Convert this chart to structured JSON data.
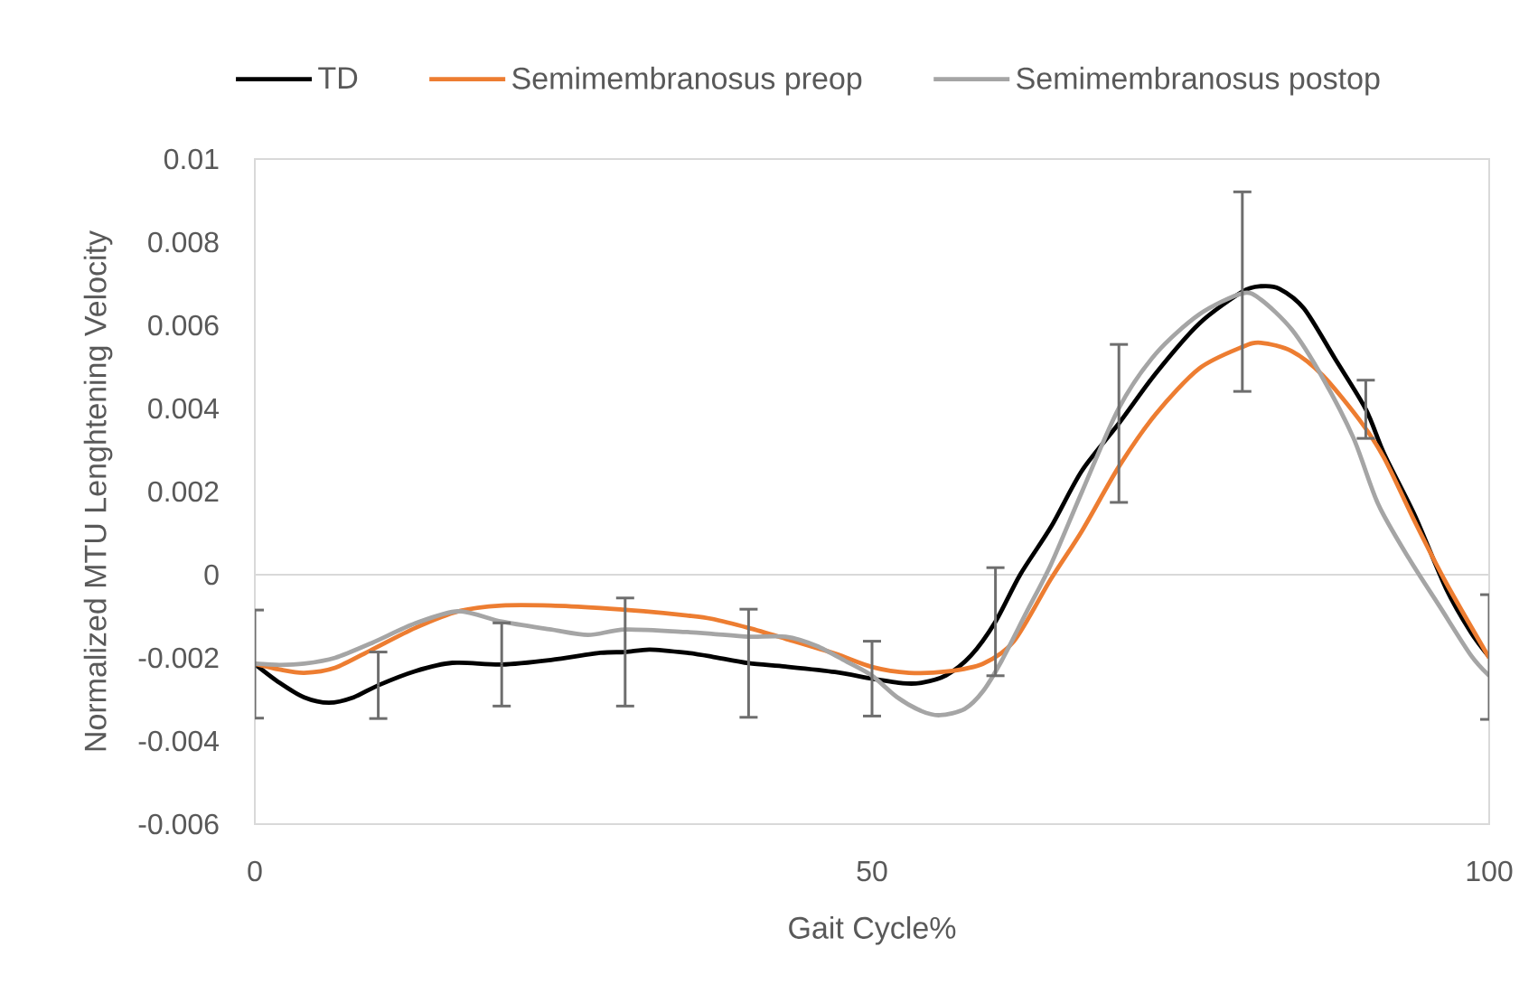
{
  "chart_data": {
    "type": "line",
    "xlabel": "Gait Cycle%",
    "ylabel": "Normalized MTU Lenghtening Velocity",
    "xlim": [
      0,
      100
    ],
    "xticks": [
      0,
      50,
      100
    ],
    "ylim": [
      -0.006,
      0.01
    ],
    "yticks": [
      -0.006,
      -0.004,
      -0.002,
      0,
      0.002,
      0.004,
      0.006,
      0.008,
      0.01
    ],
    "legend": "top",
    "marker": "none",
    "line_style": "solid",
    "ref_lines": [
      {
        "axis": "y",
        "value": 0,
        "color": "#d9d9d9"
      }
    ],
    "series": [
      {
        "name": "TD",
        "color": "#000000",
        "x": [
          0,
          2,
          4,
          6,
          8,
          10,
          13,
          16,
          20,
          24,
          28,
          30,
          32,
          35,
          37,
          40,
          43,
          47,
          50,
          52.5,
          54,
          56,
          58,
          60,
          62,
          64.5,
          67,
          70,
          73,
          76.5,
          80,
          81.5,
          83,
          85,
          87.5,
          90,
          91.5,
          94,
          96.5,
          98.5,
          100
        ],
        "values": [
          -0.00215,
          -0.0026,
          -0.00295,
          -0.00308,
          -0.00295,
          -0.00266,
          -0.00232,
          -0.00212,
          -0.00216,
          -0.00205,
          -0.00188,
          -0.00186,
          -0.0018,
          -0.00188,
          -0.00197,
          -0.00213,
          -0.00221,
          -0.00234,
          -0.0025,
          -0.00261,
          -0.0026,
          -0.00242,
          -0.00195,
          -0.00113,
          0.0,
          0.00115,
          0.0025,
          0.00364,
          0.00485,
          0.00604,
          0.00681,
          0.00694,
          0.00688,
          0.0064,
          0.0052,
          0.00398,
          0.0029,
          0.00141,
          -0.00033,
          -0.00138,
          -0.00198
        ],
        "errors": [
          0.0013,
          null,
          null,
          null,
          null,
          0.0008,
          null,
          null,
          0.001,
          null,
          null,
          0.0013,
          null,
          null,
          null,
          0.0013,
          null,
          null,
          0.0009,
          null,
          null,
          null,
          null,
          0.0013,
          null,
          null,
          null,
          0.0019,
          null,
          null,
          0.0024,
          null,
          null,
          null,
          null,
          0.0007,
          null,
          null,
          null,
          null,
          0.0015
        ]
      },
      {
        "name": "Semimembranosus preop",
        "color": "#ed7d31",
        "x": [
          0,
          2,
          4,
          6.5,
          9.5,
          13,
          16.5,
          20,
          24,
          28,
          31.5,
          35,
          37,
          40,
          43,
          47,
          50,
          53,
          56,
          59,
          61.5,
          64.5,
          67,
          70,
          73,
          76.5,
          80,
          81.5,
          84,
          86.5,
          89.5,
          91.5,
          94,
          96.5,
          100
        ],
        "values": [
          -0.00214,
          -0.00228,
          -0.00236,
          -0.00224,
          -0.0018,
          -0.00128,
          -0.00088,
          -0.00074,
          -0.00074,
          -0.0008,
          -0.00088,
          -0.00098,
          -0.00106,
          -0.00128,
          -0.00154,
          -0.0019,
          -0.00222,
          -0.00236,
          -0.00233,
          -0.00214,
          -0.0016,
          -0.0001,
          0.00105,
          0.0026,
          0.00387,
          0.00496,
          0.00548,
          0.00558,
          0.00538,
          0.0048,
          0.00372,
          0.0028,
          0.00126,
          -0.00019,
          -0.002
        ]
      },
      {
        "name": "Semimembranosus postop",
        "color": "#a5a5a5",
        "x": [
          0,
          2,
          4,
          6.5,
          9.5,
          13,
          16.5,
          20,
          24,
          27,
          30,
          35,
          37,
          40,
          43,
          45.5,
          48,
          50,
          52,
          54,
          55.5,
          57.5,
          59,
          60.5,
          62.5,
          64.5,
          67,
          70,
          73,
          76.5,
          80,
          81.5,
          84,
          86.5,
          89,
          91,
          93.5,
          96,
          98.5,
          100
        ],
        "values": [
          -0.00214,
          -0.00217,
          -0.00214,
          -0.002,
          -0.00164,
          -0.00117,
          -0.00088,
          -0.00113,
          -0.00132,
          -0.00145,
          -0.00132,
          -0.00138,
          -0.00142,
          -0.00149,
          -0.00149,
          -0.00171,
          -0.0021,
          -0.00243,
          -0.00294,
          -0.00328,
          -0.00338,
          -0.00323,
          -0.0028,
          -0.00207,
          -0.00091,
          0.00025,
          0.00199,
          0.00401,
          0.00532,
          0.00626,
          0.00677,
          0.00662,
          0.0059,
          0.00474,
          0.00329,
          0.0017,
          0.00039,
          -0.00077,
          -0.00193,
          -0.00243
        ]
      }
    ]
  }
}
